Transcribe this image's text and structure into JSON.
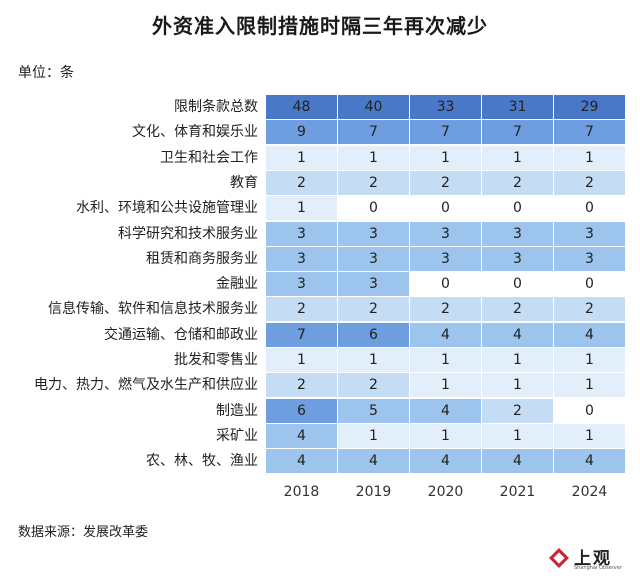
{
  "title": "外资准入限制措施时隔三年再次减少",
  "unit": "单位：条",
  "source": "数据来源：发展改革委",
  "logo": {
    "main": "上观",
    "sub": "Shanghai Observer"
  },
  "colors": {
    "header": "#4a78c8",
    "strong": "#6e9ee0",
    "mid": "#9cc4ec",
    "light": "#c4dcf4",
    "pale": "#e2eefa",
    "white": "#ffffff"
  },
  "chart_data": {
    "type": "table",
    "title": "外资准入限制措施时隔三年再次减少",
    "unit": "单位：条",
    "columns": [
      "2018",
      "2019",
      "2020",
      "2021",
      "2024"
    ],
    "rows": [
      {
        "label": "限制条款总数",
        "values": [
          48,
          40,
          33,
          31,
          29
        ]
      },
      {
        "label": "文化、体育和娱乐业",
        "values": [
          9,
          7,
          7,
          7,
          7
        ]
      },
      {
        "label": "卫生和社会工作",
        "values": [
          1,
          1,
          1,
          1,
          1
        ]
      },
      {
        "label": "教育",
        "values": [
          2,
          2,
          2,
          2,
          2
        ]
      },
      {
        "label": "水利、环境和公共设施管理业",
        "values": [
          1,
          0,
          0,
          0,
          0
        ]
      },
      {
        "label": "科学研究和技术服务业",
        "values": [
          3,
          3,
          3,
          3,
          3
        ]
      },
      {
        "label": "租赁和商务服务业",
        "values": [
          3,
          3,
          3,
          3,
          3
        ]
      },
      {
        "label": "金融业",
        "values": [
          3,
          3,
          0,
          0,
          0
        ]
      },
      {
        "label": "信息传输、软件和信息技术服务业",
        "values": [
          2,
          2,
          2,
          2,
          2
        ]
      },
      {
        "label": "交通运输、仓储和邮政业",
        "values": [
          7,
          6,
          4,
          4,
          4
        ]
      },
      {
        "label": "批发和零售业",
        "values": [
          1,
          1,
          1,
          1,
          1
        ]
      },
      {
        "label": "电力、热力、燃气及水生产和供应业",
        "values": [
          2,
          2,
          1,
          1,
          1
        ]
      },
      {
        "label": "制造业",
        "values": [
          6,
          5,
          4,
          2,
          0
        ]
      },
      {
        "label": "采矿业",
        "values": [
          4,
          1,
          1,
          1,
          1
        ]
      },
      {
        "label": "农、林、牧、渔业",
        "values": [
          4,
          4,
          4,
          4,
          4
        ]
      }
    ]
  }
}
